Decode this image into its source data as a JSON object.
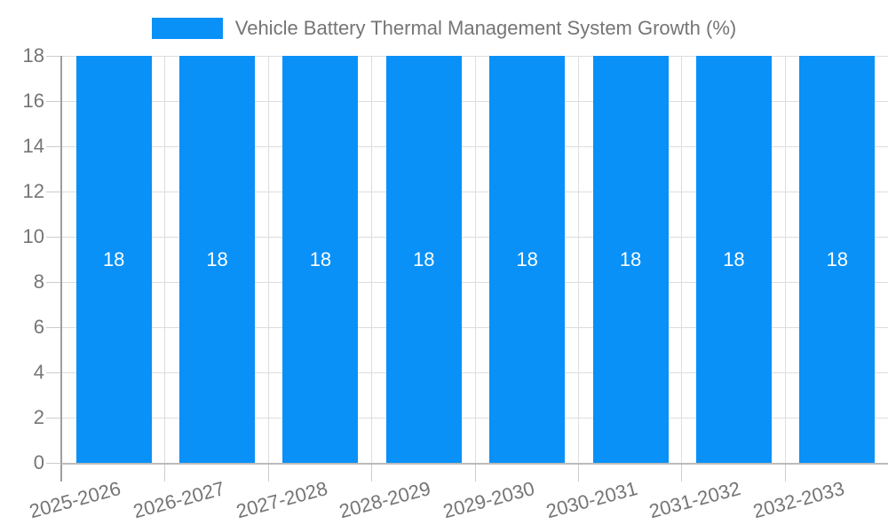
{
  "legend": {
    "label": "Vehicle Battery Thermal Management System Growth (%)"
  },
  "chart_data": {
    "type": "bar",
    "title": "Vehicle Battery Thermal Management System Growth (%)",
    "categories": [
      "2025-2026",
      "2026-2027",
      "2027-2028",
      "2028-2029",
      "2029-2030",
      "2030-2031",
      "2031-2032",
      "2032-2033"
    ],
    "values": [
      18,
      18,
      18,
      18,
      18,
      18,
      18,
      18
    ],
    "bar_value_labels": [
      "18",
      "18",
      "18",
      "18",
      "18",
      "18",
      "18",
      "18"
    ],
    "xlabel": "",
    "ylabel": "",
    "ylim": [
      0,
      18
    ],
    "yticks": [
      0,
      2,
      4,
      6,
      8,
      10,
      12,
      14,
      16,
      18
    ],
    "grid": true,
    "legend_position": "top",
    "x_tick_rotation_deg": -15
  },
  "colors": {
    "bar": "#0991F8",
    "bar_value_label": "#FFFFFF",
    "axis_text": "#757575",
    "gridline": "#DDDDDD",
    "tick": "#CCCCCC",
    "y_axis_line": "#9E9E9E",
    "x_axis_line": "#BBBBBB",
    "background": "#FFFFFF"
  }
}
